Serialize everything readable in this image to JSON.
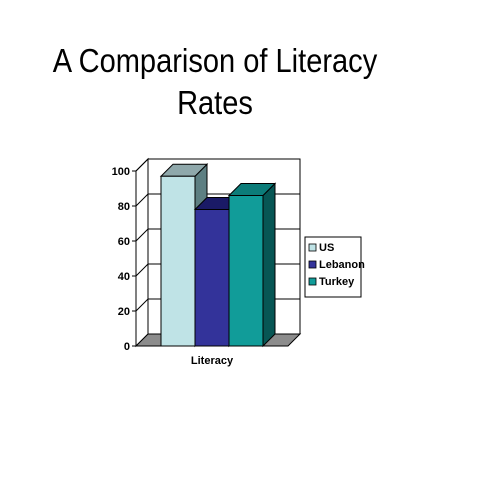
{
  "chart_data": {
    "type": "bar",
    "title_lines": [
      "A Comparison of Literacy",
      "Rates"
    ],
    "categories": [
      "Literacy"
    ],
    "series": [
      {
        "name": "US",
        "values": [
          97
        ]
      },
      {
        "name": "Lebanon",
        "values": [
          78
        ]
      },
      {
        "name": "Turkey",
        "values": [
          86
        ]
      }
    ],
    "ylim": [
      0,
      100
    ],
    "yticks": [
      "0",
      "20",
      "40",
      "60",
      "80",
      "100"
    ],
    "grid": true,
    "legend": "right",
    "colors": {
      "US": {
        "front": "#bfe3e6",
        "top": "#8fa8ab",
        "side": "#5d7f82"
      },
      "Lebanon": {
        "front": "#33339a",
        "top": "#1a1a66",
        "side": "#1b1b5e"
      },
      "Turkey": {
        "front": "#119c99",
        "top": "#0c7c79",
        "side": "#075654"
      },
      "floor": "#8c8c8c"
    }
  }
}
